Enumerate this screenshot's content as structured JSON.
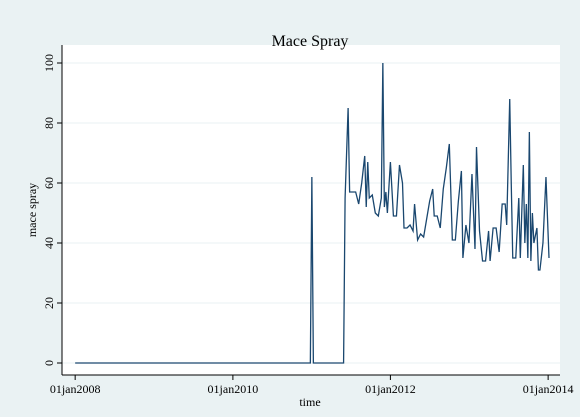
{
  "chart_data": {
    "type": "line",
    "title": "Mace Spray",
    "x_label": "time",
    "y_label": "mace spray",
    "x": [
      "2008-01-01",
      "2010-12-26",
      "2011-01-02",
      "2011-01-09",
      "2011-05-29",
      "2011-06-05",
      "2011-06-19",
      "2011-06-26",
      "2011-07-10",
      "2011-07-24",
      "2011-08-07",
      "2011-08-21",
      "2011-09-04",
      "2011-09-11",
      "2011-09-18",
      "2011-09-25",
      "2011-10-09",
      "2011-10-23",
      "2011-11-06",
      "2011-11-20",
      "2011-11-27",
      "2011-12-04",
      "2011-12-11",
      "2011-12-18",
      "2012-01-01",
      "2012-01-15",
      "2012-01-29",
      "2012-02-12",
      "2012-02-26",
      "2012-03-04",
      "2012-03-18",
      "2012-04-01",
      "2012-04-15",
      "2012-04-22",
      "2012-05-06",
      "2012-05-20",
      "2012-06-03",
      "2012-06-17",
      "2012-07-01",
      "2012-07-15",
      "2012-07-22",
      "2012-08-05",
      "2012-08-19",
      "2012-09-02",
      "2012-09-16",
      "2012-09-30",
      "2012-10-14",
      "2012-10-28",
      "2012-11-11",
      "2012-11-25",
      "2012-12-02",
      "2012-12-16",
      "2012-12-30",
      "2013-01-13",
      "2013-01-27",
      "2013-02-03",
      "2013-02-17",
      "2013-03-03",
      "2013-03-17",
      "2013-03-31",
      "2013-04-07",
      "2013-04-21",
      "2013-05-05",
      "2013-05-19",
      "2013-06-02",
      "2013-06-16",
      "2013-06-23",
      "2013-07-07",
      "2013-07-14",
      "2013-07-21",
      "2013-08-04",
      "2013-08-18",
      "2013-08-25",
      "2013-09-08",
      "2013-09-15",
      "2013-09-22",
      "2013-09-29",
      "2013-10-06",
      "2013-10-13",
      "2013-10-20",
      "2013-10-27",
      "2013-11-10",
      "2013-11-17",
      "2013-11-24",
      "2013-12-08",
      "2013-12-22",
      "2014-01-05"
    ],
    "series": [
      {
        "name": "mace spray",
        "color": "#1a476f",
        "values": [
          0,
          0,
          62,
          0,
          0,
          55,
          85,
          57,
          57,
          57,
          53,
          60,
          69,
          52,
          67,
          55,
          56,
          50,
          49,
          55,
          100,
          52,
          57,
          50,
          67,
          49,
          49,
          66,
          60,
          45,
          45,
          46,
          44,
          53,
          41,
          43,
          42,
          48,
          54,
          58,
          49,
          49,
          45,
          58,
          65,
          73,
          41,
          41,
          54,
          64,
          35,
          46,
          40,
          63,
          38,
          72,
          44,
          34,
          34,
          44,
          34,
          45,
          45,
          37,
          53,
          53,
          46,
          88,
          60,
          35,
          35,
          55,
          35,
          66,
          40,
          53,
          35,
          77,
          34,
          50,
          40,
          45,
          31,
          31,
          40,
          62,
          35
        ]
      }
    ],
    "xlim": [
      "2007-11-01",
      "2014-02-25"
    ],
    "xticks": [
      {
        "value": "2008-01-01",
        "label": "01jan2008"
      },
      {
        "value": "2010-01-01",
        "label": "01jan2010"
      },
      {
        "value": "2012-01-01",
        "label": "01jan2012"
      },
      {
        "value": "2014-01-01",
        "label": "01jan2014"
      }
    ],
    "ylim": [
      -4,
      106
    ],
    "yticks": [
      0,
      20,
      40,
      60,
      80,
      100
    ],
    "grid": true
  }
}
